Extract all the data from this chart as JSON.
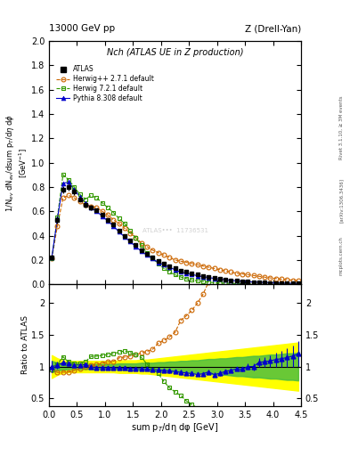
{
  "title_left": "13000 GeV pp",
  "title_right": "Z (Drell-Yan)",
  "plot_title": "Nch (ATLAS UE in Z production)",
  "xlabel": "sum p$_T$/dη dφ [GeV]",
  "ylabel_main": "1/N$_{ev}$ dN$_{ev}$/dsum p$_T$/dη dφ",
  "ylabel_main2": "[GeV$^{-1}$]",
  "ylabel_ratio": "Ratio to ATLAS",
  "right_label": "Rivet 3.1.10, ≥ 3M events",
  "right_label2": "[arXiv:1306.3436]",
  "right_label3": "mcplots.cern.ch",
  "xlim": [
    0,
    4.5
  ],
  "ylim_main": [
    0,
    2.0
  ],
  "ylim_ratio": [
    0.38,
    2.3
  ],
  "atlas_x": [
    0.05,
    0.15,
    0.25,
    0.35,
    0.45,
    0.55,
    0.65,
    0.75,
    0.85,
    0.95,
    1.05,
    1.15,
    1.25,
    1.35,
    1.45,
    1.55,
    1.65,
    1.75,
    1.85,
    1.95,
    2.05,
    2.15,
    2.25,
    2.35,
    2.45,
    2.55,
    2.65,
    2.75,
    2.85,
    2.95,
    3.05,
    3.15,
    3.25,
    3.35,
    3.45,
    3.55,
    3.65,
    3.75,
    3.85,
    3.95,
    4.05,
    4.15,
    4.25,
    4.35,
    4.45
  ],
  "atlas_y": [
    0.22,
    0.53,
    0.78,
    0.8,
    0.76,
    0.7,
    0.65,
    0.63,
    0.61,
    0.57,
    0.53,
    0.49,
    0.44,
    0.4,
    0.36,
    0.32,
    0.28,
    0.25,
    0.22,
    0.19,
    0.17,
    0.15,
    0.13,
    0.11,
    0.1,
    0.09,
    0.08,
    0.07,
    0.06,
    0.055,
    0.047,
    0.04,
    0.034,
    0.029,
    0.025,
    0.021,
    0.018,
    0.015,
    0.013,
    0.011,
    0.009,
    0.008,
    0.007,
    0.006,
    0.005
  ],
  "atlas_yerr": [
    0.02,
    0.03,
    0.03,
    0.03,
    0.025,
    0.02,
    0.02,
    0.02,
    0.015,
    0.015,
    0.015,
    0.01,
    0.01,
    0.01,
    0.01,
    0.008,
    0.008,
    0.007,
    0.006,
    0.006,
    0.005,
    0.005,
    0.004,
    0.004,
    0.003,
    0.003,
    0.002,
    0.002,
    0.002,
    0.002,
    0.002,
    0.001,
    0.001,
    0.001,
    0.001,
    0.001,
    0.001,
    0.001,
    0.001,
    0.001,
    0.001,
    0.001,
    0.001,
    0.001,
    0.001
  ],
  "herwig_pp_x": [
    0.05,
    0.15,
    0.25,
    0.35,
    0.45,
    0.55,
    0.65,
    0.75,
    0.85,
    0.95,
    1.05,
    1.15,
    1.25,
    1.35,
    1.45,
    1.55,
    1.65,
    1.75,
    1.85,
    1.95,
    2.05,
    2.15,
    2.25,
    2.35,
    2.45,
    2.55,
    2.65,
    2.75,
    2.85,
    2.95,
    3.05,
    3.15,
    3.25,
    3.35,
    3.45,
    3.55,
    3.65,
    3.75,
    3.85,
    3.95,
    4.05,
    4.15,
    4.25,
    4.35,
    4.45
  ],
  "herwig_pp_y": [
    0.21,
    0.48,
    0.71,
    0.73,
    0.71,
    0.68,
    0.65,
    0.64,
    0.63,
    0.6,
    0.57,
    0.53,
    0.5,
    0.46,
    0.42,
    0.38,
    0.34,
    0.31,
    0.28,
    0.26,
    0.24,
    0.22,
    0.2,
    0.19,
    0.18,
    0.17,
    0.16,
    0.15,
    0.14,
    0.13,
    0.12,
    0.11,
    0.1,
    0.09,
    0.085,
    0.078,
    0.072,
    0.065,
    0.058,
    0.052,
    0.047,
    0.042,
    0.038,
    0.034,
    0.03
  ],
  "herwig7_x": [
    0.05,
    0.15,
    0.25,
    0.35,
    0.45,
    0.55,
    0.65,
    0.75,
    0.85,
    0.95,
    1.05,
    1.15,
    1.25,
    1.35,
    1.45,
    1.55,
    1.65,
    1.75,
    1.85,
    1.95,
    2.05,
    2.15,
    2.25,
    2.35,
    2.45,
    2.55,
    2.65,
    2.75,
    2.85,
    2.95,
    3.05,
    3.15,
    3.25,
    3.35,
    3.45,
    3.55,
    3.65,
    3.75,
    3.85,
    3.95,
    4.05,
    4.15,
    4.25,
    4.35,
    4.45
  ],
  "herwig7_y": [
    0.21,
    0.55,
    0.9,
    0.86,
    0.8,
    0.74,
    0.7,
    0.73,
    0.71,
    0.67,
    0.63,
    0.59,
    0.54,
    0.5,
    0.44,
    0.38,
    0.32,
    0.26,
    0.21,
    0.17,
    0.13,
    0.1,
    0.078,
    0.06,
    0.046,
    0.036,
    0.028,
    0.022,
    0.017,
    0.013,
    0.01,
    0.0082,
    0.0065,
    0.0051,
    0.004,
    0.0031,
    0.0025,
    0.0019,
    0.0015,
    0.0012,
    0.0009,
    0.00075,
    0.0006,
    0.0005,
    0.0004
  ],
  "pythia_x": [
    0.05,
    0.15,
    0.25,
    0.35,
    0.45,
    0.55,
    0.65,
    0.75,
    0.85,
    0.95,
    1.05,
    1.15,
    1.25,
    1.35,
    1.45,
    1.55,
    1.65,
    1.75,
    1.85,
    1.95,
    2.05,
    2.15,
    2.25,
    2.35,
    2.45,
    2.55,
    2.65,
    2.75,
    2.85,
    2.95,
    3.05,
    3.15,
    3.25,
    3.35,
    3.45,
    3.55,
    3.65,
    3.75,
    3.85,
    3.95,
    4.05,
    4.15,
    4.25,
    4.35,
    4.45
  ],
  "pythia_y": [
    0.22,
    0.54,
    0.83,
    0.84,
    0.78,
    0.72,
    0.67,
    0.63,
    0.6,
    0.56,
    0.52,
    0.48,
    0.43,
    0.39,
    0.35,
    0.31,
    0.27,
    0.24,
    0.21,
    0.18,
    0.16,
    0.14,
    0.12,
    0.1,
    0.09,
    0.08,
    0.07,
    0.062,
    0.055,
    0.048,
    0.042,
    0.037,
    0.032,
    0.028,
    0.024,
    0.021,
    0.018,
    0.016,
    0.014,
    0.012,
    0.01,
    0.009,
    0.008,
    0.007,
    0.006
  ],
  "band_yellow_lo": [
    0.82,
    0.87,
    0.9,
    0.91,
    0.91,
    0.91,
    0.91,
    0.91,
    0.91,
    0.91,
    0.91,
    0.91,
    0.9,
    0.9,
    0.9,
    0.9,
    0.89,
    0.89,
    0.88,
    0.87,
    0.86,
    0.85,
    0.84,
    0.83,
    0.82,
    0.81,
    0.8,
    0.79,
    0.78,
    0.77,
    0.76,
    0.75,
    0.74,
    0.73,
    0.72,
    0.71,
    0.7,
    0.69,
    0.68,
    0.67,
    0.66,
    0.65,
    0.64,
    0.63,
    0.62
  ],
  "band_yellow_hi": [
    1.18,
    1.13,
    1.1,
    1.09,
    1.09,
    1.09,
    1.09,
    1.09,
    1.09,
    1.09,
    1.09,
    1.09,
    1.1,
    1.1,
    1.1,
    1.1,
    1.11,
    1.11,
    1.12,
    1.13,
    1.14,
    1.15,
    1.16,
    1.17,
    1.18,
    1.19,
    1.2,
    1.21,
    1.22,
    1.23,
    1.24,
    1.25,
    1.26,
    1.27,
    1.28,
    1.29,
    1.3,
    1.31,
    1.32,
    1.33,
    1.34,
    1.35,
    1.36,
    1.37,
    1.38
  ],
  "band_green_lo": [
    0.91,
    0.94,
    0.95,
    0.96,
    0.96,
    0.96,
    0.96,
    0.96,
    0.96,
    0.96,
    0.96,
    0.96,
    0.95,
    0.95,
    0.95,
    0.95,
    0.94,
    0.94,
    0.94,
    0.93,
    0.93,
    0.92,
    0.92,
    0.91,
    0.91,
    0.9,
    0.9,
    0.89,
    0.88,
    0.88,
    0.87,
    0.87,
    0.86,
    0.85,
    0.85,
    0.84,
    0.83,
    0.83,
    0.82,
    0.81,
    0.81,
    0.8,
    0.79,
    0.79,
    0.78
  ],
  "band_green_hi": [
    1.09,
    1.06,
    1.05,
    1.04,
    1.04,
    1.04,
    1.04,
    1.04,
    1.04,
    1.04,
    1.04,
    1.04,
    1.05,
    1.05,
    1.05,
    1.05,
    1.06,
    1.06,
    1.06,
    1.07,
    1.07,
    1.08,
    1.08,
    1.09,
    1.09,
    1.1,
    1.1,
    1.11,
    1.12,
    1.12,
    1.13,
    1.13,
    1.14,
    1.15,
    1.15,
    1.16,
    1.17,
    1.17,
    1.18,
    1.19,
    1.19,
    1.2,
    1.21,
    1.21,
    1.22
  ],
  "color_atlas": "#000000",
  "color_herwig_pp": "#cc6600",
  "color_herwig7": "#339900",
  "color_pythia": "#0000cc",
  "color_band_yellow": "#ffff00",
  "color_band_green": "#44bb44"
}
